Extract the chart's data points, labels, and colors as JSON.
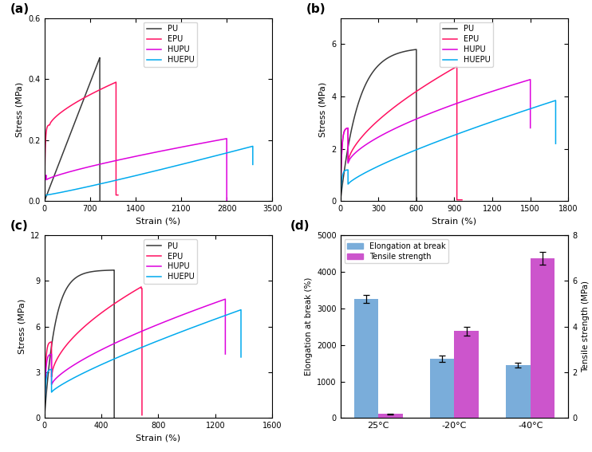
{
  "colors": {
    "PU": "#3a3a3a",
    "EPU": "#ff1060",
    "HUPU": "#dd00dd",
    "HUEPU": "#00aaee"
  },
  "panel_a": {
    "xlim": [
      0,
      3500
    ],
    "ylim": [
      0,
      0.6
    ],
    "xticks": [
      0,
      700,
      1400,
      2100,
      2800,
      3500
    ],
    "yticks": [
      0.0,
      0.2,
      0.4,
      0.6
    ]
  },
  "panel_b": {
    "xlim": [
      0,
      1800
    ],
    "ylim": [
      0,
      7
    ],
    "xticks": [
      0,
      300,
      600,
      900,
      1200,
      1500,
      1800
    ],
    "yticks": [
      0,
      2,
      4,
      6
    ]
  },
  "panel_c": {
    "xlim": [
      0,
      1600
    ],
    "ylim": [
      0,
      12
    ],
    "xticks": [
      0,
      400,
      800,
      1200,
      1600
    ],
    "yticks": [
      0,
      3,
      6,
      9,
      12
    ]
  },
  "panel_d": {
    "temperatures": [
      "25°C",
      "-20°C",
      "-40°C"
    ],
    "elongation_values": [
      3250,
      1620,
      1450
    ],
    "elongation_errors": [
      110,
      95,
      60
    ],
    "tensile_values": [
      0.18,
      3.8,
      7.0
    ],
    "tensile_errors": [
      0.01,
      0.18,
      0.28
    ],
    "bar_color_elongation": "#7aadda",
    "bar_color_tensile": "#cc55cc",
    "ylabel_left": "Elongation at break (%)",
    "ylabel_right": "Tensile strength (MPa)",
    "ylim_left": [
      0,
      5000
    ],
    "ylim_right": [
      0,
      8
    ],
    "yticks_left": [
      0,
      1000,
      2000,
      3000,
      4000,
      5000
    ],
    "yticks_right": [
      0,
      2,
      4,
      6,
      8
    ]
  }
}
